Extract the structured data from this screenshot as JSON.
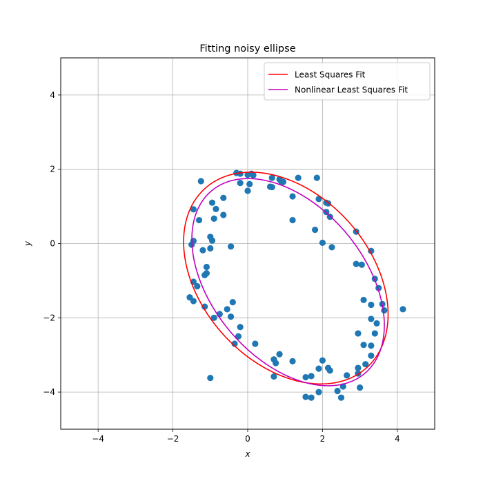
{
  "chart_data": {
    "type": "scatter",
    "title": "Fitting noisy ellipse",
    "xlabel": "x",
    "ylabel": "y",
    "xlim": [
      -5,
      5
    ],
    "ylim": [
      -5,
      5
    ],
    "xticks": [
      -4,
      -2,
      0,
      2,
      4
    ],
    "yticks": [
      -4,
      -2,
      0,
      2,
      4
    ],
    "grid": true,
    "legend_position": "top-right",
    "series": [
      {
        "kind": "points",
        "color": "#1f77b4",
        "points": [
          [
            -0.3,
            1.9
          ],
          [
            -0.2,
            1.88
          ],
          [
            0.0,
            1.85
          ],
          [
            0.1,
            1.88
          ],
          [
            0.15,
            1.84
          ],
          [
            -0.2,
            1.63
          ],
          [
            0.05,
            1.6
          ],
          [
            0.0,
            1.42
          ],
          [
            0.6,
            1.53
          ],
          [
            0.65,
            1.52
          ],
          [
            0.65,
            1.77
          ],
          [
            0.85,
            1.73
          ],
          [
            0.9,
            1.67
          ],
          [
            0.95,
            1.66
          ],
          [
            1.35,
            1.77
          ],
          [
            1.85,
            1.77
          ],
          [
            1.2,
            1.27
          ],
          [
            1.9,
            1.2
          ],
          [
            2.1,
            1.1
          ],
          [
            2.15,
            1.08
          ],
          [
            2.1,
            0.85
          ],
          [
            2.2,
            0.72
          ],
          [
            1.2,
            0.63
          ],
          [
            1.8,
            0.37
          ],
          [
            2.9,
            0.32
          ],
          [
            2.0,
            0.02
          ],
          [
            2.25,
            -0.1
          ],
          [
            3.3,
            -0.2
          ],
          [
            2.9,
            -0.55
          ],
          [
            3.05,
            -0.57
          ],
          [
            3.4,
            -0.95
          ],
          [
            3.5,
            -1.2
          ],
          [
            3.1,
            -1.52
          ],
          [
            3.3,
            -1.65
          ],
          [
            3.6,
            -1.63
          ],
          [
            3.65,
            -1.8
          ],
          [
            4.15,
            -1.77
          ],
          [
            3.45,
            -2.15
          ],
          [
            3.3,
            -2.03
          ],
          [
            2.95,
            -2.42
          ],
          [
            3.4,
            -2.42
          ],
          [
            3.1,
            -2.73
          ],
          [
            3.3,
            -2.75
          ],
          [
            3.3,
            -3.02
          ],
          [
            3.15,
            -3.25
          ],
          [
            2.95,
            -3.35
          ],
          [
            2.95,
            -3.5
          ],
          [
            2.65,
            -3.55
          ],
          [
            3.0,
            -3.88
          ],
          [
            2.55,
            -3.85
          ],
          [
            2.4,
            -3.97
          ],
          [
            2.5,
            -4.15
          ],
          [
            1.9,
            -4.0
          ],
          [
            1.7,
            -4.15
          ],
          [
            1.55,
            -4.13
          ],
          [
            1.55,
            -3.6
          ],
          [
            1.7,
            -3.57
          ],
          [
            1.9,
            -3.37
          ],
          [
            2.15,
            -3.35
          ],
          [
            2.2,
            -3.42
          ],
          [
            2.0,
            -3.15
          ],
          [
            1.2,
            -3.17
          ],
          [
            0.85,
            -2.98
          ],
          [
            0.7,
            -3.12
          ],
          [
            0.75,
            -3.22
          ],
          [
            0.7,
            -3.58
          ],
          [
            0.2,
            -2.7
          ],
          [
            -0.35,
            -2.7
          ],
          [
            -0.25,
            -2.5
          ],
          [
            -0.2,
            -2.25
          ],
          [
            -0.45,
            -1.97
          ],
          [
            -0.55,
            -1.77
          ],
          [
            -0.75,
            -1.9
          ],
          [
            -0.4,
            -1.58
          ],
          [
            -0.9,
            -2.0
          ],
          [
            -1.0,
            -3.62
          ],
          [
            -1.15,
            -1.7
          ],
          [
            -1.15,
            -0.85
          ],
          [
            -1.1,
            -0.8
          ],
          [
            -1.1,
            -0.63
          ],
          [
            -1.2,
            -0.18
          ],
          [
            -1.35,
            -1.15
          ],
          [
            -1.45,
            -1.03
          ],
          [
            -1.55,
            -1.45
          ],
          [
            -1.45,
            -1.55
          ],
          [
            -1.5,
            -0.03
          ],
          [
            -1.45,
            0.07
          ],
          [
            -1.0,
            0.18
          ],
          [
            -0.95,
            0.08
          ],
          [
            -1.0,
            -0.13
          ],
          [
            -0.45,
            -0.08
          ],
          [
            -1.3,
            0.63
          ],
          [
            -1.45,
            0.92
          ],
          [
            -0.9,
            0.67
          ],
          [
            -0.85,
            0.93
          ],
          [
            -0.95,
            1.1
          ],
          [
            -0.65,
            0.77
          ],
          [
            -0.65,
            1.23
          ],
          [
            -1.25,
            1.68
          ]
        ]
      },
      {
        "kind": "ellipse",
        "name": "Least Squares Fit",
        "color": "#ff0000",
        "center": [
          1.02,
          -0.93
        ],
        "semi_major": 3.24,
        "semi_minor": 2.26,
        "angle_deg": -48.5
      },
      {
        "kind": "ellipse",
        "name": "Nonlinear Least Squares Fit",
        "color": "#bf00bf",
        "center": [
          1.08,
          -1.04
        ],
        "semi_major": 3.2,
        "semi_minor": 2.04,
        "angle_deg": -50.5
      }
    ]
  }
}
